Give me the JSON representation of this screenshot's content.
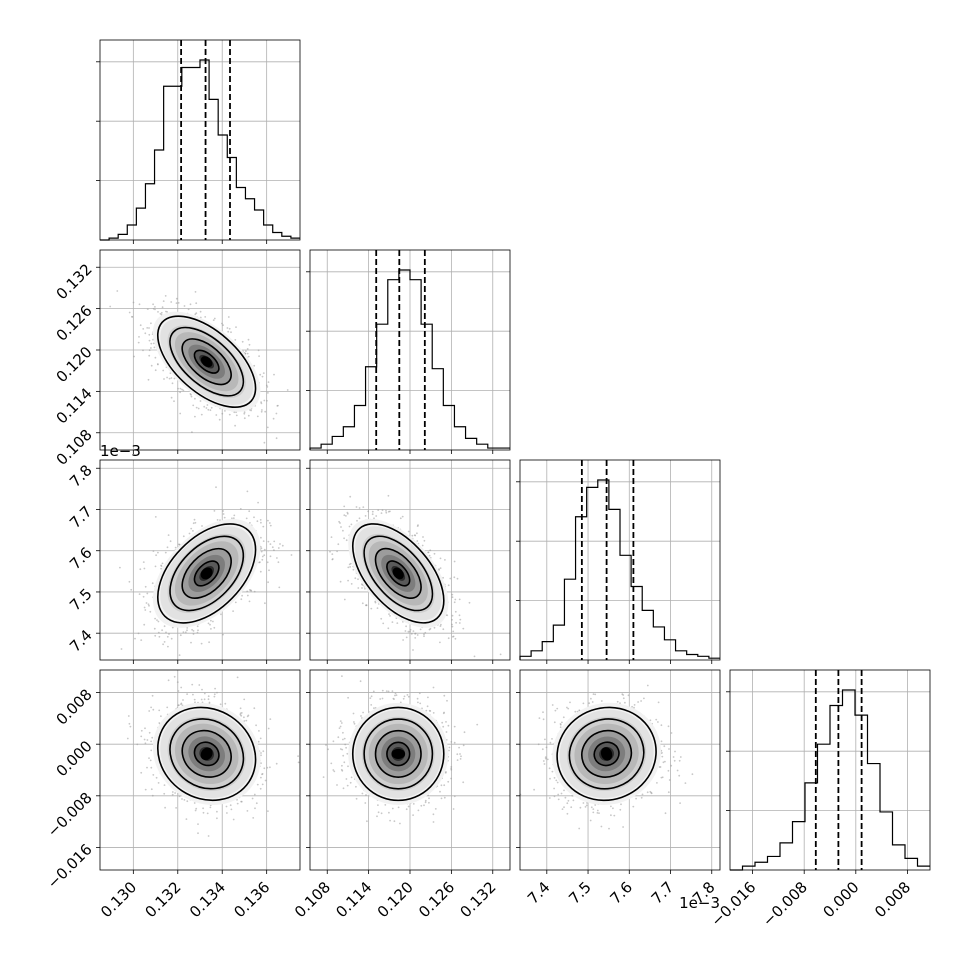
{
  "chart_data": {
    "type": "corner",
    "grid": true,
    "quantiles": [
      0.16,
      0.5,
      0.84
    ],
    "params": [
      {
        "range": [
          0.1285,
          0.1375
        ],
        "ticks": [
          0.13,
          0.132,
          0.134,
          0.136
        ],
        "tick_labels": [
          "0.130",
          "0.132",
          "0.134",
          "0.136"
        ],
        "offset_label": "",
        "quantile_values": [
          0.13215,
          0.13325,
          0.13435
        ],
        "hist_counts": [
          0,
          1,
          3,
          8,
          17,
          30,
          48,
          82,
          82,
          92,
          92,
          96,
          75,
          56,
          44,
          28,
          22,
          16,
          8,
          4,
          2,
          1
        ]
      },
      {
        "range": [
          0.1055,
          0.1345
        ],
        "ticks": [
          0.108,
          0.114,
          0.12,
          0.126,
          0.132
        ],
        "tick_labels": [
          "0.108",
          "0.114",
          "0.120",
          "0.126",
          "0.132"
        ],
        "offset_label": "",
        "quantile_values": [
          0.1151,
          0.11845,
          0.12215
        ],
        "hist_counts": [
          1,
          3,
          7,
          12,
          23,
          43,
          65,
          88,
          93,
          88,
          65,
          42,
          23,
          12,
          6,
          3,
          1,
          1
        ]
      },
      {
        "range": [
          7.335,
          7.82
        ],
        "ticks": [
          7.4,
          7.5,
          7.6,
          7.7,
          7.8
        ],
        "tick_labels": [
          "7.4",
          "7.5",
          "7.6",
          "7.7",
          "7.8"
        ],
        "offset_label": "1e−3",
        "quantile_values": [
          7.485,
          7.545,
          7.61
        ],
        "hist_counts": [
          2,
          5,
          10,
          19,
          44,
          78,
          94,
          98,
          82,
          57,
          40,
          27,
          18,
          11,
          5,
          3,
          2,
          1
        ]
      },
      {
        "range": [
          -0.0195,
          0.0115
        ],
        "ticks": [
          -0.016,
          -0.008,
          0.0,
          0.008
        ],
        "tick_labels": [
          "−0.016",
          "−0.008",
          "0.000",
          "0.008"
        ],
        "offset_label": "",
        "quantile_values": [
          -0.0062,
          -0.0027,
          0.0009
        ],
        "hist_counts": [
          0,
          2,
          4,
          7,
          14,
          25,
          45,
          65,
          85,
          93,
          80,
          55,
          30,
          13,
          6,
          2
        ]
      }
    ],
    "pairs": [
      {
        "row": 1,
        "col": 0,
        "center": [
          0.1333,
          0.1183
        ],
        "sigma": [
          0.0011,
          0.0033
        ],
        "rho": -0.58,
        "contour_scale": [
          2.0,
          1.5,
          1.0,
          0.5
        ]
      },
      {
        "row": 2,
        "col": 0,
        "center": [
          0.1333,
          7.545
        ],
        "sigma": [
          0.0011,
          0.06
        ],
        "rho": 0.48,
        "contour_scale": [
          2.0,
          1.5,
          1.0,
          0.5
        ]
      },
      {
        "row": 2,
        "col": 1,
        "center": [
          0.1183,
          7.545
        ],
        "sigma": [
          0.0033,
          0.06
        ],
        "rho": -0.55,
        "contour_scale": [
          2.0,
          1.5,
          1.0,
          0.5
        ]
      },
      {
        "row": 3,
        "col": 0,
        "center": [
          0.1333,
          -0.0015
        ],
        "sigma": [
          0.0011,
          0.0036
        ],
        "rho": -0.12,
        "contour_scale": [
          2.0,
          1.5,
          1.0,
          0.5
        ]
      },
      {
        "row": 3,
        "col": 1,
        "center": [
          0.1183,
          -0.0015
        ],
        "sigma": [
          0.0033,
          0.0036
        ],
        "rho": 0.0,
        "contour_scale": [
          2.0,
          1.5,
          1.0,
          0.5
        ]
      },
      {
        "row": 3,
        "col": 2,
        "center": [
          7.545,
          -0.0015
        ],
        "sigma": [
          0.06,
          0.0036
        ],
        "rho": 0.05,
        "contour_scale": [
          2.0,
          1.5,
          1.0,
          0.5
        ]
      }
    ]
  }
}
